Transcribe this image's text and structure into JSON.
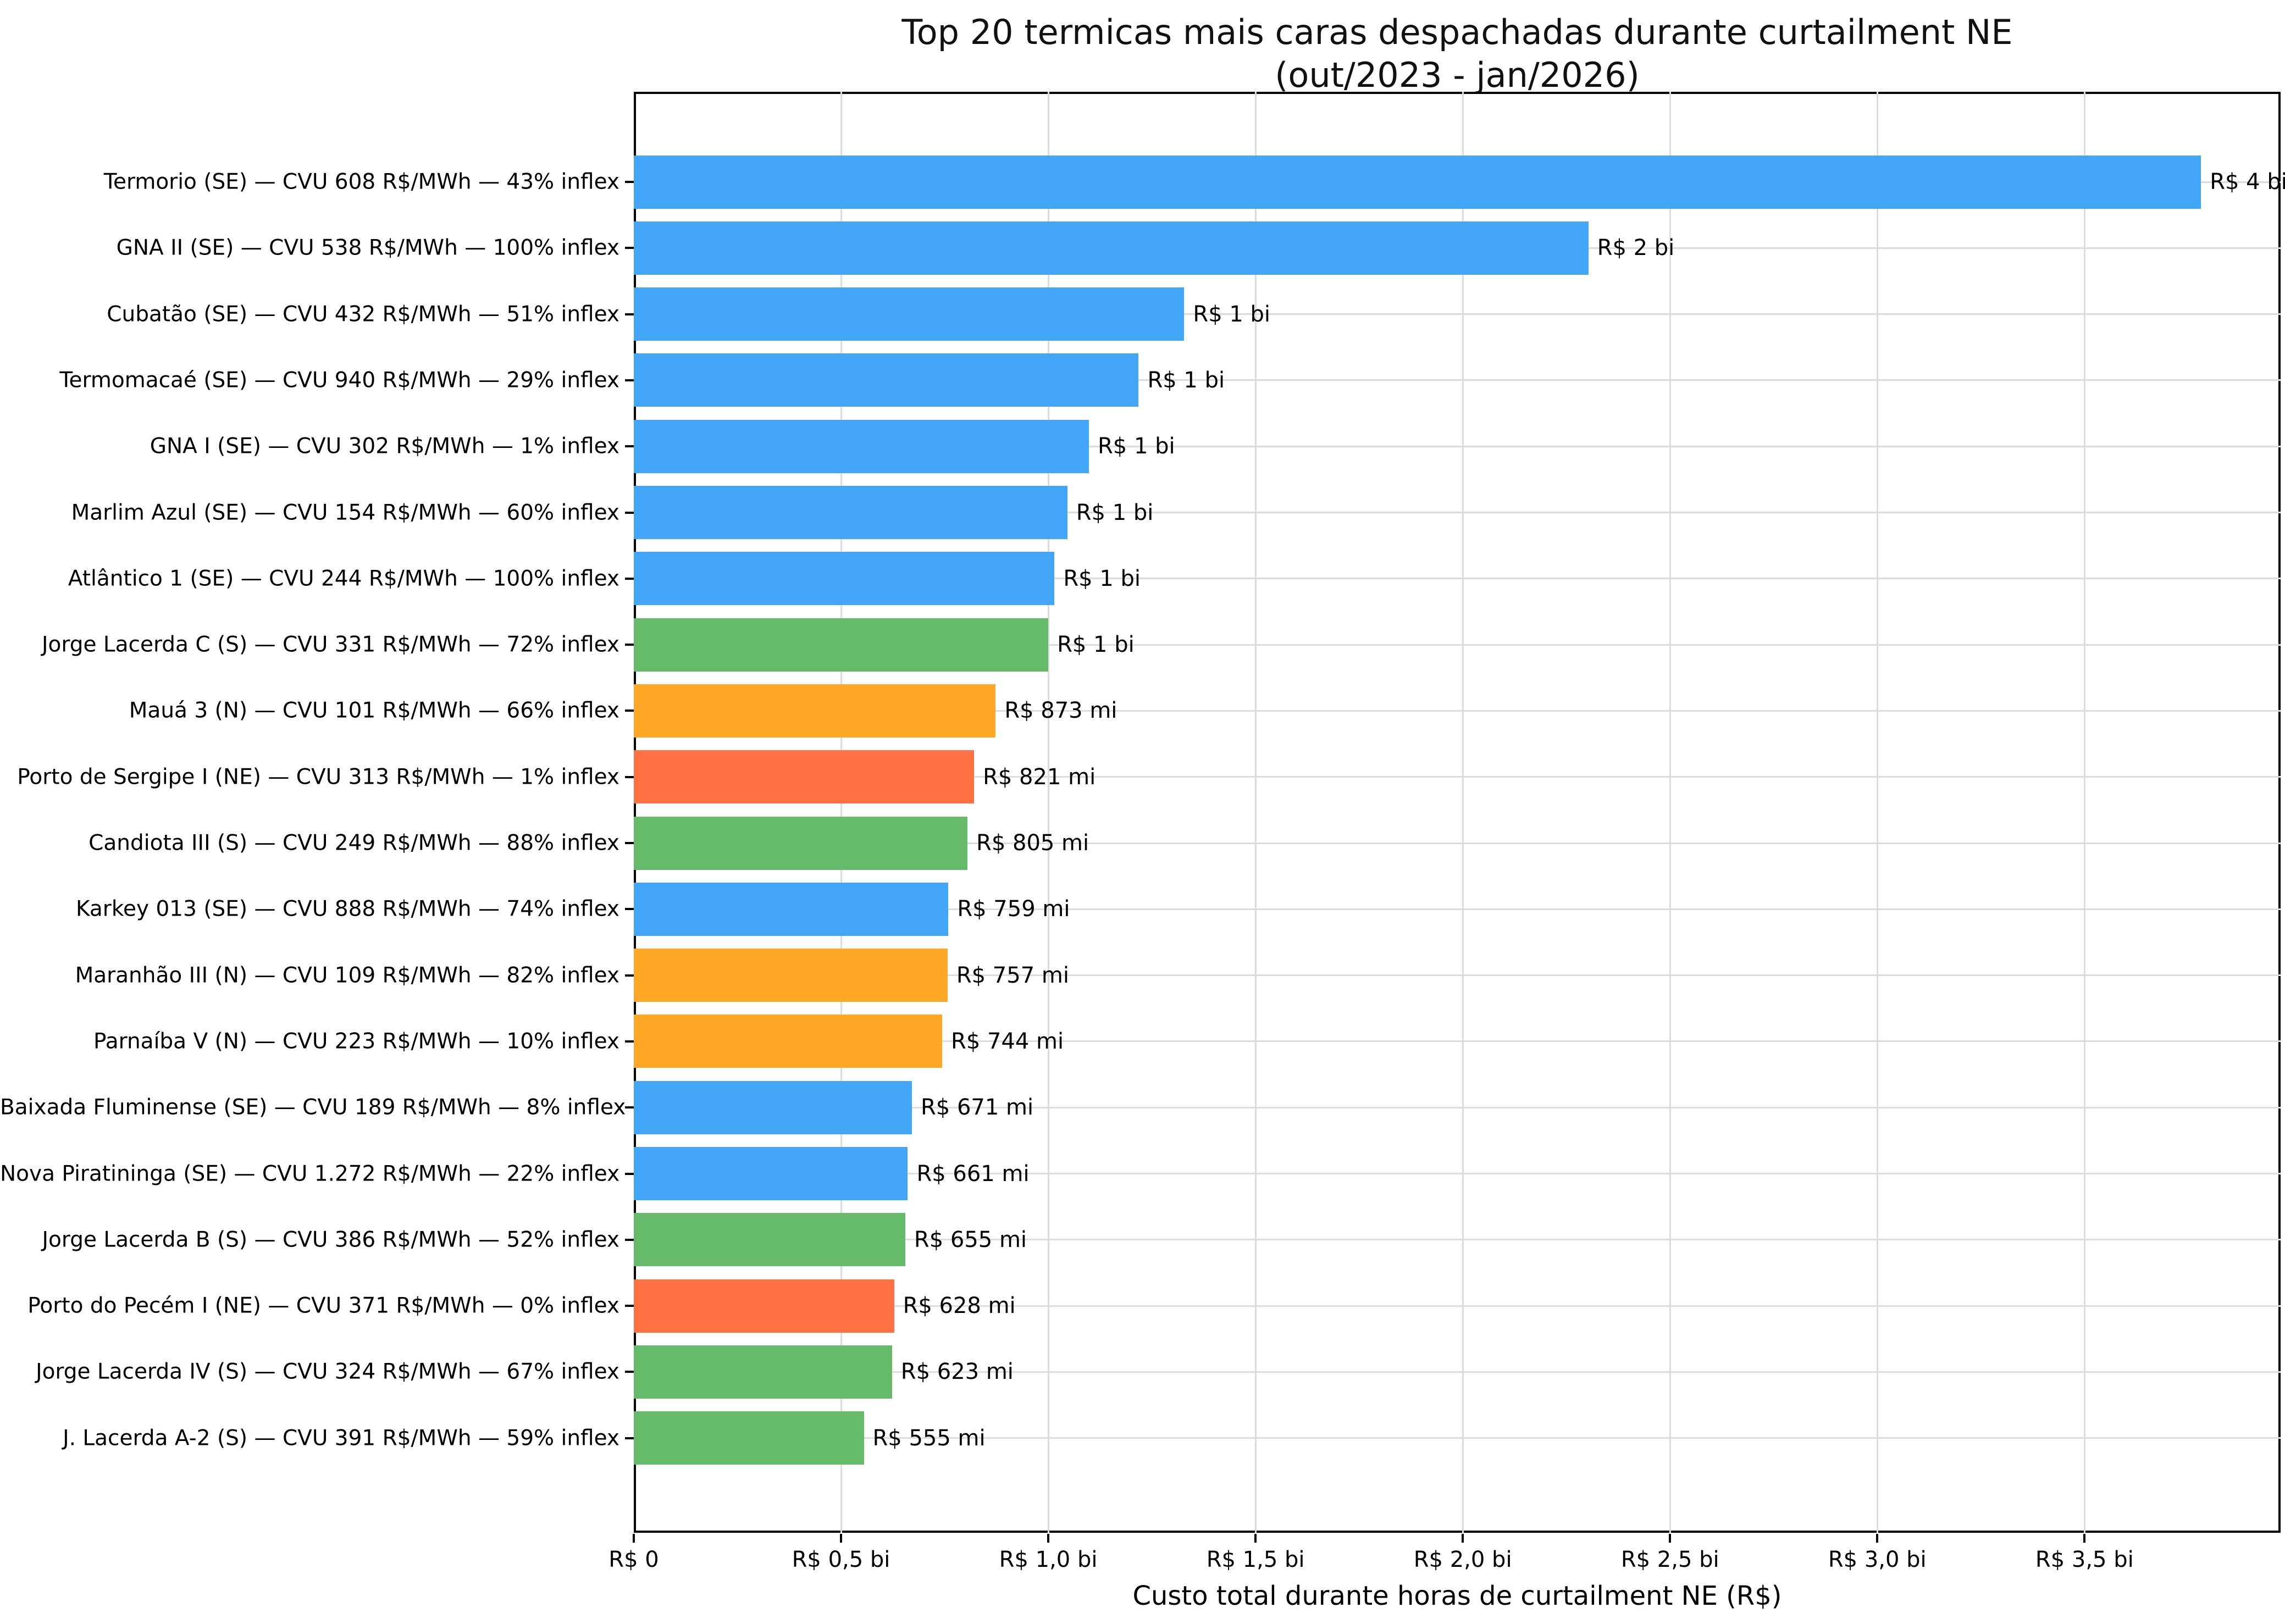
{
  "chart_data": {
    "type": "bar",
    "orientation": "horizontal",
    "title": "Top 20 termicas mais caras despachadas durante curtailment NE",
    "subtitle": "(out/2023 - jan/2026)",
    "xlabel": "Custo total durante horas de curtailment NE (R$)",
    "xlim_mi": [
      0,
      3973
    ],
    "grid": true,
    "legend": "none",
    "x_ticks": [
      {
        "label": "R$ 0",
        "value_mi": 0
      },
      {
        "label": "R$ 0,5 bi",
        "value_mi": 500
      },
      {
        "label": "R$ 1,0 bi",
        "value_mi": 1000
      },
      {
        "label": "R$ 1,5 bi",
        "value_mi": 1500
      },
      {
        "label": "R$ 2,0 bi",
        "value_mi": 2000
      },
      {
        "label": "R$ 2,5 bi",
        "value_mi": 2500
      },
      {
        "label": "R$ 3,0 bi",
        "value_mi": 3000
      },
      {
        "label": "R$ 3,5 bi",
        "value_mi": 3500
      }
    ],
    "region_colors": {
      "SE": "#42a5f5",
      "S": "#66bb6a",
      "N": "#ffa726",
      "NE": "#ff7043"
    },
    "bars": [
      {
        "label": "Termorio (SE) — CVU 608 R$/MWh — 43% inflex",
        "region": "SE",
        "value_mi": 3781,
        "value_label": "R$ 4 bi"
      },
      {
        "label": "GNA II (SE) — CVU 538 R$/MWh — 100% inflex",
        "region": "SE",
        "value_mi": 2303,
        "value_label": "R$ 2 bi"
      },
      {
        "label": "Cubatão (SE) — CVU 432 R$/MWh — 51% inflex",
        "region": "SE",
        "value_mi": 1328,
        "value_label": "R$ 1 bi"
      },
      {
        "label": "Termomacaé (SE) — CVU 940 R$/MWh — 29% inflex",
        "region": "SE",
        "value_mi": 1218,
        "value_label": "R$ 1 bi"
      },
      {
        "label": "GNA I (SE) — CVU 302 R$/MWh — 1% inflex",
        "region": "SE",
        "value_mi": 1098,
        "value_label": "R$ 1 bi"
      },
      {
        "label": "Marlim Azul (SE) — CVU 154 R$/MWh — 60% inflex",
        "region": "SE",
        "value_mi": 1046,
        "value_label": "R$ 1 bi"
      },
      {
        "label": "Atlântico 1 (SE) — CVU 244 R$/MWh — 100% inflex",
        "region": "SE",
        "value_mi": 1015,
        "value_label": "R$ 1 bi"
      },
      {
        "label": "Jorge Lacerda C (S) — CVU 331 R$/MWh — 72% inflex",
        "region": "S",
        "value_mi": 1000,
        "value_label": "R$ 1 bi"
      },
      {
        "label": "Mauá 3 (N) — CVU 101 R$/MWh — 66% inflex",
        "region": "N",
        "value_mi": 873,
        "value_label": "R$ 873 mi"
      },
      {
        "label": "Porto de Sergipe I (NE) — CVU 313 R$/MWh — 1% inflex",
        "region": "NE",
        "value_mi": 821,
        "value_label": "R$ 821 mi"
      },
      {
        "label": "Candiota III (S) — CVU 249 R$/MWh — 88% inflex",
        "region": "S",
        "value_mi": 805,
        "value_label": "R$ 805 mi"
      },
      {
        "label": "Karkey 013 (SE) — CVU 888 R$/MWh — 74% inflex",
        "region": "SE",
        "value_mi": 759,
        "value_label": "R$ 759 mi"
      },
      {
        "label": "Maranhão III (N) — CVU 109 R$/MWh — 82% inflex",
        "region": "N",
        "value_mi": 757,
        "value_label": "R$ 757 mi"
      },
      {
        "label": "Parnaíba V (N) — CVU 223 R$/MWh — 10% inflex",
        "region": "N",
        "value_mi": 744,
        "value_label": "R$ 744 mi"
      },
      {
        "label": "Baixada Fluminense (SE) — CVU 189 R$/MWh — 8% inflex",
        "region": "SE",
        "value_mi": 671,
        "value_label": "R$ 671 mi"
      },
      {
        "label": "Nova Piratininga (SE) — CVU 1.272 R$/MWh — 22% inflex",
        "region": "SE",
        "value_mi": 661,
        "value_label": "R$ 661 mi"
      },
      {
        "label": "Jorge Lacerda B (S) — CVU 386 R$/MWh — 52% inflex",
        "region": "S",
        "value_mi": 655,
        "value_label": "R$ 655 mi"
      },
      {
        "label": "Porto do Pecém I (NE) — CVU 371 R$/MWh — 0% inflex",
        "region": "NE",
        "value_mi": 628,
        "value_label": "R$ 628 mi"
      },
      {
        "label": "Jorge Lacerda IV (S) — CVU 324 R$/MWh — 67% inflex",
        "region": "S",
        "value_mi": 623,
        "value_label": "R$ 623 mi"
      },
      {
        "label": "J. Lacerda A-2 (S) — CVU 391 R$/MWh — 59% inflex",
        "region": "S",
        "value_mi": 555,
        "value_label": "R$ 555 mi"
      }
    ]
  }
}
